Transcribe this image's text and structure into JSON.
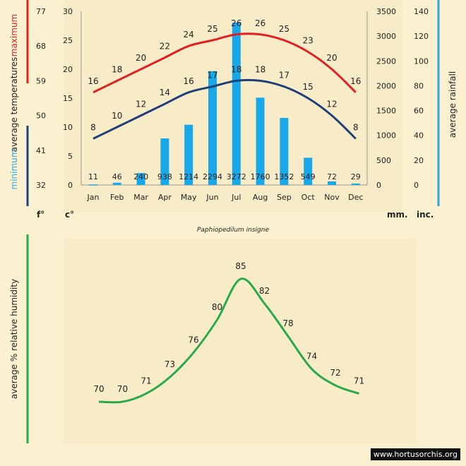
{
  "colors": {
    "max": "#e02020",
    "min": "#1f3f7a",
    "rain": "#19a7e8",
    "humidity": "#2aa84a",
    "rain_axis": "#2aa9e8",
    "background": "#fbf1d0",
    "panel": "#f8ecc8"
  },
  "species": "Paphiopedilum insigne",
  "watermark": "www.hortusorchis.org",
  "chart_data": [
    {
      "type": "bar+line",
      "categories": [
        "Jan",
        "Feb",
        "Mar",
        "Apr",
        "May",
        "Jun",
        "Jul",
        "Aug",
        "Sep",
        "Oct",
        "Nov",
        "Dec"
      ],
      "series": [
        {
          "name": "maximum",
          "values": [
            16,
            18,
            20,
            22,
            24,
            25,
            26,
            26,
            25,
            23,
            20,
            16
          ]
        },
        {
          "name": "minimum",
          "values": [
            8,
            10,
            12,
            14,
            16,
            17,
            18,
            18,
            17,
            15,
            12,
            8
          ]
        },
        {
          "name": "rainfall",
          "values": [
            11,
            46,
            240,
            938,
            1214,
            2294,
            3272,
            1760,
            1352,
            549,
            72,
            29
          ]
        }
      ],
      "left_labels": {
        "maximum": "maximum",
        "average_temperatures": "average  temperatures",
        "minimum": "minimum"
      },
      "right_label": "average rainfall",
      "unit_labels": {
        "f": "f°",
        "c": "c°",
        "mm": "mm.",
        "inc": "inc."
      },
      "axes": {
        "f_ticks": [
          77,
          68,
          59,
          50,
          41,
          32
        ],
        "c_ticks": [
          30,
          25,
          20,
          15,
          10,
          5,
          0
        ],
        "mm_ticks": [
          3500,
          3000,
          2500,
          2000,
          1500,
          1000,
          500,
          0
        ],
        "inc_ticks": [
          140,
          120,
          100,
          80,
          60,
          40,
          20,
          0
        ],
        "c_range": [
          0,
          30
        ],
        "mm_range": [
          0,
          3500
        ]
      }
    },
    {
      "type": "line",
      "categories": [
        "Jan",
        "Feb",
        "Mar",
        "Apr",
        "May",
        "Jun",
        "Jul",
        "Aug",
        "Sep",
        "Oct",
        "Nov",
        "Dec"
      ],
      "series": [
        {
          "name": "humidity",
          "values": [
            70,
            70,
            71,
            73,
            76,
            80,
            85,
            82,
            78,
            74,
            72,
            71
          ]
        }
      ],
      "ylabel": "average %  relative humidity"
    }
  ]
}
